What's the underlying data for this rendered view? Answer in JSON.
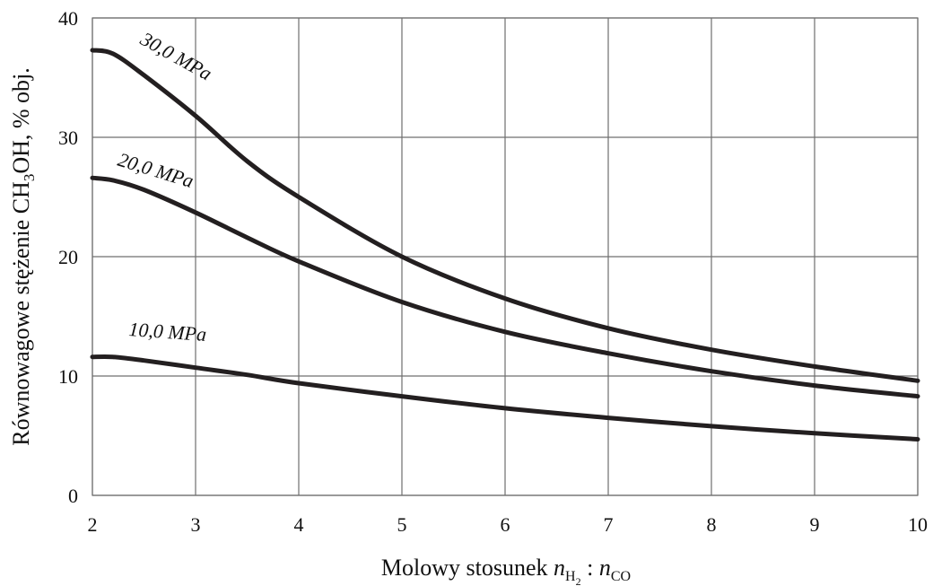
{
  "chart_data": {
    "type": "line",
    "xlabel": {
      "prefix": "Molowy stosunek ",
      "n1": "n",
      "sub1": "H",
      "sub1b": "2",
      "sep": " : ",
      "n2": "n",
      "sub2": "CO"
    },
    "ylabel": {
      "main": "Równowagowe stężenie CH",
      "sub": "3",
      "rest": "OH, % obj."
    },
    "xlim": [
      2,
      10
    ],
    "ylim": [
      0,
      40
    ],
    "x_ticks": [
      2,
      3,
      4,
      5,
      6,
      7,
      8,
      9,
      10
    ],
    "y_ticks": [
      0,
      10,
      20,
      30,
      40
    ],
    "grid": true,
    "series": [
      {
        "name": "30,0 MPa",
        "x": [
          2.0,
          2.2,
          2.5,
          3.0,
          3.5,
          4.0,
          5.0,
          6.0,
          7.0,
          8.0,
          9.0,
          10.0
        ],
        "y": [
          37.3,
          37.0,
          35.2,
          31.8,
          28.0,
          25.0,
          20.0,
          16.5,
          14.0,
          12.2,
          10.8,
          9.6
        ]
      },
      {
        "name": "20,0 MPa",
        "x": [
          2.0,
          2.2,
          2.5,
          3.0,
          3.5,
          4.0,
          5.0,
          6.0,
          7.0,
          8.0,
          9.0,
          10.0
        ],
        "y": [
          26.6,
          26.4,
          25.6,
          23.7,
          21.6,
          19.6,
          16.2,
          13.7,
          11.9,
          10.4,
          9.2,
          8.3
        ]
      },
      {
        "name": "10,0 MPa",
        "x": [
          2.0,
          2.2,
          2.5,
          3.0,
          3.5,
          4.0,
          5.0,
          6.0,
          7.0,
          8.0,
          9.0,
          10.0
        ],
        "y": [
          11.6,
          11.6,
          11.3,
          10.7,
          10.1,
          9.4,
          8.3,
          7.3,
          6.5,
          5.8,
          5.2,
          4.7
        ]
      }
    ],
    "line_color": "#231f20",
    "grid_color": "#6f6f6f"
  }
}
